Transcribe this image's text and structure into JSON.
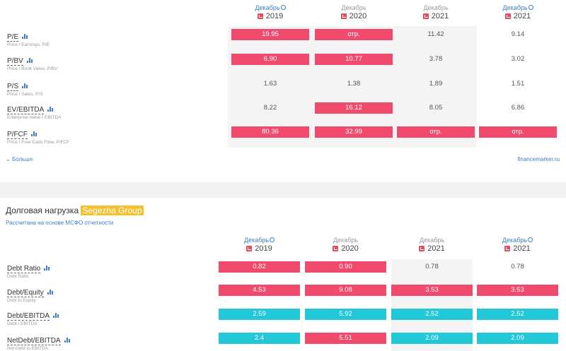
{
  "multiples": {
    "columns": [
      {
        "month": "Декабрь",
        "year": "2019",
        "info": true
      },
      {
        "month": "Декабрь",
        "year": "2020",
        "info": false
      },
      {
        "month": "Декабрь",
        "year": "2021",
        "info": false
      },
      {
        "month": "Декабрь",
        "year": "2021",
        "info": true
      }
    ],
    "rows": [
      {
        "name": "P/E",
        "sub": "Price / Earnings, P/E",
        "values": [
          "19.95",
          "отр.",
          "11.42",
          "9.14"
        ],
        "styles": [
          "red",
          "red",
          "",
          ""
        ]
      },
      {
        "name": "P/BV",
        "sub": "Price / Book Value, P/BV",
        "values": [
          "6.90",
          "10.77",
          "3.78",
          "3.02"
        ],
        "styles": [
          "red",
          "red",
          "",
          ""
        ]
      },
      {
        "name": "P/S",
        "sub": "Price / Sales, P/S",
        "values": [
          "1.63",
          "1.38",
          "1.89",
          "1.51"
        ],
        "styles": [
          "",
          "",
          "",
          ""
        ]
      },
      {
        "name": "EV/EBITDA",
        "sub": "Enterprise Value / EBITDA",
        "values": [
          "8.22",
          "16.12",
          "8.05",
          "6.86"
        ],
        "styles": [
          "",
          "red",
          "",
          ""
        ]
      },
      {
        "name": "P/FCF",
        "sub": "Price / Free Cash Flow, P/FCF",
        "values": [
          "80.36",
          "32.99",
          "отр.",
          "отр."
        ],
        "styles": [
          "red",
          "red",
          "red",
          "red"
        ]
      }
    ],
    "more_label": "Больше",
    "credit": "financemarker.ru"
  },
  "debt": {
    "title_prefix": "Долговая нагрузка ",
    "company": "Segezha Group",
    "subtitle": "Рассчитана на основе МСФО отчетности",
    "columns": [
      {
        "month": "Декабрь",
        "year": "2019",
        "info": true
      },
      {
        "month": "Декабрь",
        "year": "2020",
        "info": false
      },
      {
        "month": "Декабрь",
        "year": "2021",
        "info": false
      },
      {
        "month": "Декабрь",
        "year": "2021",
        "info": true
      }
    ],
    "rows": [
      {
        "name": "Debt Ratio",
        "sub": "Debt Ratio",
        "values": [
          "0.82",
          "0.90",
          "0.78",
          "0.78"
        ],
        "styles": [
          "red",
          "red",
          "",
          ""
        ]
      },
      {
        "name": "Debt/Equity",
        "sub": "Debt to Equity",
        "values": [
          "4.53",
          "9.08",
          "3.53",
          "3.53"
        ],
        "styles": [
          "red",
          "red",
          "red",
          "red"
        ]
      },
      {
        "name": "Debt/EBITDA",
        "sub": "Debt / EBITDA",
        "values": [
          "2.59",
          "5.92",
          "2.52",
          "2.52"
        ],
        "styles": [
          "teal",
          "teal",
          "teal",
          "teal"
        ]
      },
      {
        "name": "NetDebt/EBITDA",
        "sub": "Net Debt to EBITDA",
        "values": [
          "2.4",
          "5.51",
          "2.09",
          "2.09"
        ],
        "styles": [
          "teal",
          "red",
          "teal",
          "teal"
        ]
      }
    ]
  },
  "colors": {
    "red": "#f04b6d",
    "teal": "#23c8d8",
    "link": "#3c7fc4",
    "highlight": "#f5c02e"
  }
}
